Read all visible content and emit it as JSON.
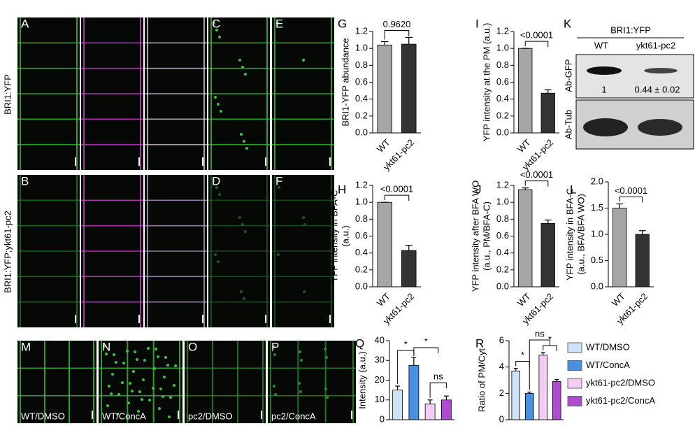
{
  "panels": [
    {
      "letter": "A"
    },
    {
      "letter": "B"
    },
    {
      "letter": "C"
    },
    {
      "letter": "D"
    },
    {
      "letter": "E"
    },
    {
      "letter": "F"
    },
    {
      "letter": "M",
      "caption": "WT/DMSO"
    },
    {
      "letter": "N",
      "caption": "WT/ConcA"
    },
    {
      "letter": "O",
      "caption": "pc2/DMSO"
    },
    {
      "letter": "P",
      "caption": "pc2/ConcA"
    }
  ],
  "row_labels": [
    "BRI1:YFP",
    "BRI1:YFP;ykt61-pc2"
  ],
  "blot": {
    "panel": "K",
    "title": "BRI1:YFP",
    "lanes": [
      "WT",
      "ykt61-pc2"
    ],
    "rows": [
      "Ab-GFP",
      "Ab-Tub"
    ],
    "quant": [
      "1",
      "0.44 ± 0.02"
    ]
  },
  "chart_data": [
    {
      "type": "bar",
      "panel": "G",
      "ylabel": [
        "BRI1-YFP abundance"
      ],
      "categories": [
        "WT",
        "ykt61-pc2"
      ],
      "values": [
        1.04,
        1.05
      ],
      "errors": [
        0.04,
        0.08
      ],
      "colors": [
        "#a6a6a6",
        "#333333"
      ],
      "ylim": [
        0,
        1.2
      ],
      "yticks": [
        {
          "value": 0,
          "label": "0.0"
        },
        0.2,
        0.4,
        0.6,
        0.8,
        {
          "value": 1,
          "label": "1.0"
        },
        1.2
      ],
      "annotations": [
        "0.9620"
      ]
    },
    {
      "type": "bar",
      "panel": "I",
      "ylabel": [
        "YFP intensity at the PM (a.u.)"
      ],
      "categories": [
        "WT",
        "ykt61-pc2"
      ],
      "values": [
        1.0,
        0.47
      ],
      "errors": [
        0,
        0.04
      ],
      "colors": [
        "#a6a6a6",
        "#333333"
      ],
      "ylim": [
        0,
        1.2
      ],
      "yticks": [
        {
          "value": 0,
          "label": "0.0"
        },
        0.2,
        0.4,
        0.6,
        0.8,
        {
          "value": 1,
          "label": "1.0"
        },
        1.2
      ],
      "annotations": [
        "<0.0001"
      ]
    },
    {
      "type": "bar",
      "panel": "H",
      "ylabel": [
        "YFP intensity in BFA-C",
        "(a.u.)"
      ],
      "categories": [
        "WT",
        "ykt61-pc2"
      ],
      "values": [
        1.0,
        0.43
      ],
      "errors": [
        0,
        0.06
      ],
      "colors": [
        "#a6a6a6",
        "#333333"
      ],
      "ylim": [
        0,
        1.2
      ],
      "yticks": [
        {
          "value": 0,
          "label": "0.0"
        },
        0.2,
        0.4,
        0.6,
        0.8,
        {
          "value": 1,
          "label": "1.0"
        },
        1.2
      ],
      "annotations": [
        "<0.0001"
      ]
    },
    {
      "type": "bar",
      "panel": "J",
      "ylabel": [
        "YFP intensity after BFA WO",
        "(a.u., PM/BFA-C)"
      ],
      "categories": [
        "WT",
        "ykt61-pc2"
      ],
      "values": [
        1.15,
        0.75
      ],
      "errors": [
        0.02,
        0.04
      ],
      "colors": [
        "#a6a6a6",
        "#333333"
      ],
      "ylim": [
        0,
        1.2
      ],
      "yticks": [
        {
          "value": 0,
          "label": "0.0"
        },
        0.2,
        0.4,
        0.6,
        0.8,
        {
          "value": 1,
          "label": "1.0"
        },
        1.2
      ],
      "annotations": [
        "<0.0001"
      ]
    },
    {
      "type": "bar",
      "panel": "L",
      "ylabel": [
        "YFP intensity in BFA-C",
        "(a.u., BFA/BFA WO)"
      ],
      "categories": [
        "WT",
        "ykt61-pc2"
      ],
      "values": [
        1.5,
        1.0
      ],
      "errors": [
        0.08,
        0.07
      ],
      "colors": [
        "#a6a6a6",
        "#333333"
      ],
      "ylim": [
        0,
        2
      ],
      "yticks": [
        {
          "value": 0,
          "label": "0.0"
        },
        0.5,
        {
          "value": 1,
          "label": "1.0"
        },
        1.5,
        {
          "value": 2,
          "label": "2.0"
        }
      ],
      "annotations": [
        "<0.0001"
      ]
    },
    {
      "type": "bar",
      "panel": "Q",
      "ylabel": [
        "Intensity (a.u.)"
      ],
      "values": [
        15,
        27.5,
        8,
        10
      ],
      "errors": [
        2,
        4,
        2,
        2
      ],
      "colors": [
        "#cfe2f7",
        "#4a90e2",
        "#f2ccf2",
        "#b04ad0"
      ],
      "ylim": [
        0,
        40
      ],
      "yticks": [
        0,
        10,
        20,
        30,
        40
      ],
      "annotations": [
        "*",
        "*",
        "ns"
      ]
    },
    {
      "type": "bar",
      "panel": "R",
      "ylabel": [
        "Ratio of PM/Cyt"
      ],
      "values": [
        3.7,
        2.0,
        4.9,
        2.9
      ],
      "errors": [
        0.2,
        0.1,
        0.2,
        0.15
      ],
      "colors": [
        "#cfe2f7",
        "#4a90e2",
        "#f2ccf2",
        "#b04ad0"
      ],
      "ylim": [
        0,
        6
      ],
      "yticks": [
        0,
        2,
        4,
        6
      ],
      "annotations": [
        "*",
        "ns",
        "*"
      ],
      "legend": [
        "WT/DMSO",
        "WT/ConcA",
        "ykt61-pc2/DMSO",
        "ykt61-pc2/ConcA"
      ]
    }
  ]
}
